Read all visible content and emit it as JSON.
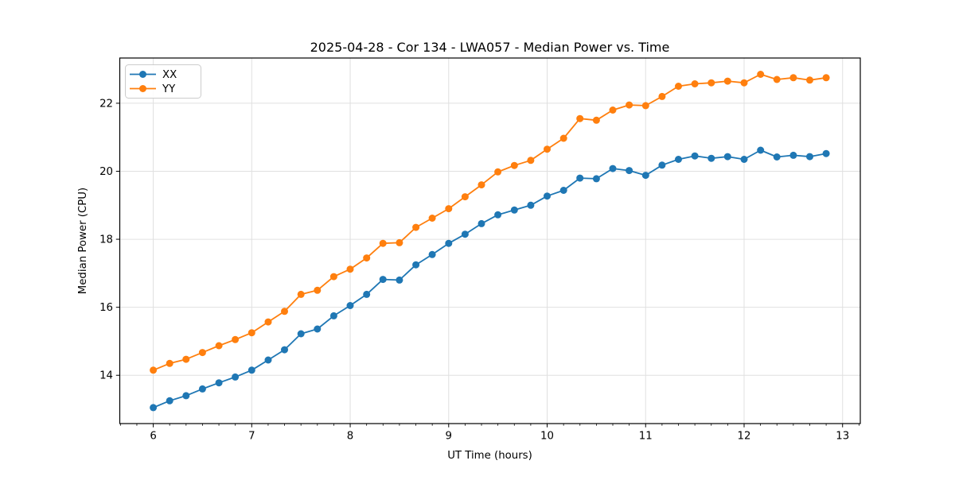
{
  "figure": {
    "background_color": "#ffffff"
  },
  "chart_data": {
    "type": "line",
    "title": "2025-04-28 - Cor 134 - LWA057 - Median Power vs. Time",
    "xlabel": "UT Time (hours)",
    "ylabel": "Median Power (CPU)",
    "xlim": [
      5.66,
      13.18
    ],
    "ylim": [
      12.58,
      23.33
    ],
    "xticks": [
      6,
      7,
      8,
      9,
      10,
      11,
      12,
      13
    ],
    "yticks": [
      14,
      16,
      18,
      20,
      22
    ],
    "x_minor_tick_step": 0.1667,
    "grid": true,
    "grid_color": "#e0e0e0",
    "spine_color": "#000000",
    "legend_position": "upper-left",
    "marker": "o",
    "x": [
      6.0,
      6.167,
      6.333,
      6.5,
      6.667,
      6.833,
      7.0,
      7.167,
      7.333,
      7.5,
      7.667,
      7.833,
      8.0,
      8.167,
      8.333,
      8.5,
      8.667,
      8.833,
      9.0,
      9.167,
      9.333,
      9.5,
      9.667,
      9.833,
      10.0,
      10.167,
      10.333,
      10.5,
      10.667,
      10.833,
      11.0,
      11.167,
      11.333,
      11.5,
      11.667,
      11.833,
      12.0,
      12.167,
      12.333,
      12.5,
      12.667,
      12.833
    ],
    "series": [
      {
        "name": "XX",
        "color": "#1f77b4",
        "values": [
          13.05,
          13.25,
          13.4,
          13.6,
          13.78,
          13.95,
          14.15,
          14.45,
          14.75,
          15.22,
          15.36,
          15.75,
          16.05,
          16.38,
          16.82,
          16.8,
          17.25,
          17.55,
          17.88,
          18.15,
          18.46,
          18.72,
          18.86,
          19.0,
          19.27,
          19.44,
          19.8,
          19.78,
          20.08,
          20.02,
          19.88,
          20.18,
          20.35,
          20.45,
          20.38,
          20.43,
          20.35,
          20.62,
          20.42,
          20.47,
          20.43,
          20.52
        ]
      },
      {
        "name": "YY",
        "color": "#ff7f0e",
        "values": [
          14.15,
          14.35,
          14.47,
          14.67,
          14.87,
          15.05,
          15.25,
          15.57,
          15.88,
          16.38,
          16.5,
          16.9,
          17.12,
          17.45,
          17.88,
          17.9,
          18.35,
          18.62,
          18.9,
          19.25,
          19.6,
          19.98,
          20.17,
          20.32,
          20.65,
          20.97,
          21.55,
          21.5,
          21.8,
          21.95,
          21.93,
          22.2,
          22.5,
          22.57,
          22.6,
          22.65,
          22.6,
          22.85,
          22.7,
          22.75,
          22.68,
          22.75
        ]
      }
    ]
  }
}
